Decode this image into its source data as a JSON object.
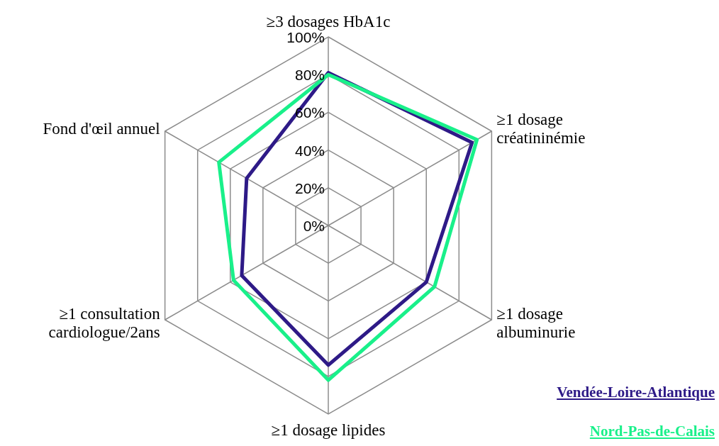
{
  "chart_data": {
    "type": "radar",
    "categories": [
      "≥3 dosages HbA1c",
      "≥1 dosage\ncréatininémie",
      "≥1 dosage\nalbuminurie",
      "≥1 dosage lipides",
      "≥1 consultation\ncardiologue/2ans",
      "Fond d'œil annuel"
    ],
    "series": [
      {
        "name": "Vendée-Loire-Atlantique",
        "color": "#2e1a87",
        "values": [
          81,
          88,
          60,
          74,
          53,
          50
        ]
      },
      {
        "name": "Nord-Pas-de-Calais",
        "color": "#19f08a",
        "values": [
          80,
          91,
          65,
          82,
          58,
          67
        ]
      }
    ],
    "ylim": [
      0,
      100
    ],
    "yticks": [
      {
        "value": 0,
        "label": "0%"
      },
      {
        "value": 20,
        "label": "20%"
      },
      {
        "value": 40,
        "label": "40%"
      },
      {
        "value": 60,
        "label": "60%"
      },
      {
        "value": 80,
        "label": "80%"
      },
      {
        "value": 100,
        "label": "100%"
      }
    ],
    "grid": true,
    "legend": "bottom right",
    "marker": "none"
  }
}
